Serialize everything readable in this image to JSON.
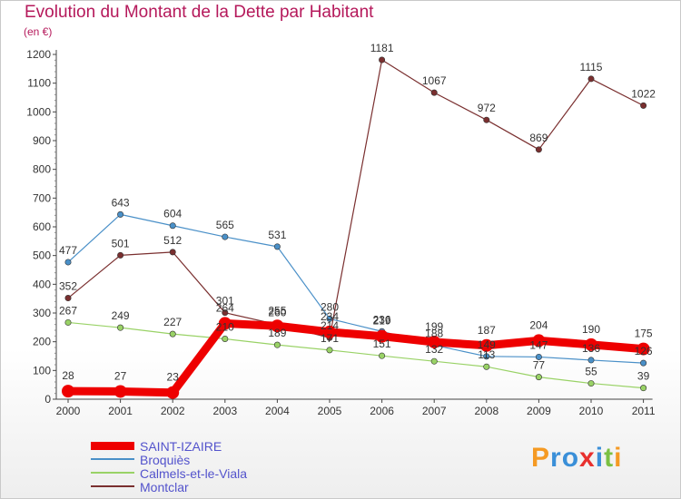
{
  "title": "Evolution du Montant de la Dette par Habitant",
  "unit_label": "(en €)",
  "brand": {
    "text": "Proxiti",
    "colors": [
      "#f59a23",
      "#3a8fd8",
      "#3a8fd8",
      "#e8302e",
      "#3a8fd8",
      "#7bc043",
      "#f59a23"
    ]
  },
  "chart_data": {
    "type": "line",
    "title": "Evolution du Montant de la Dette par Habitant",
    "ylabel": "(en €)",
    "xlabel": "",
    "ylim": [
      0,
      1200
    ],
    "yticks": [
      "0",
      "100",
      "200",
      "300",
      "400",
      "500",
      "600",
      "700",
      "800",
      "900",
      "1000",
      "1100",
      "1200"
    ],
    "categories": [
      "2000",
      "2001",
      "2002",
      "2003",
      "2004",
      "2005",
      "2006",
      "2007",
      "2008",
      "2009",
      "2010",
      "2011"
    ],
    "grid": false,
    "legend_position": "bottom-left",
    "series": [
      {
        "name": "Broquiès",
        "color": "#4a90c8",
        "thick": false,
        "values": [
          477,
          643,
          604,
          565,
          531,
          280,
          236,
          188,
          149,
          147,
          136,
          126
        ],
        "labels": [
          "477",
          "643",
          "604",
          "565",
          "531",
          "280",
          "236",
          "188",
          "149",
          "147",
          "136",
          "126"
        ]
      },
      {
        "name": "Calmels-et-le-Viala",
        "color": "#99d266",
        "thick": false,
        "values": [
          267,
          249,
          227,
          210,
          189,
          171,
          151,
          132,
          113,
          77,
          55,
          39
        ],
        "labels": [
          "267",
          "249",
          "227",
          "210",
          "189",
          "171",
          "151",
          "132",
          "113",
          "77",
          "55",
          "39"
        ]
      },
      {
        "name": "Montclar",
        "color": "#7a2f2f",
        "thick": false,
        "values": [
          352,
          501,
          512,
          301,
          260,
          214,
          1181,
          1067,
          972,
          869,
          1115,
          1022
        ],
        "labels": [
          "352",
          "501",
          "512",
          "301",
          "260",
          "214",
          "1181",
          "1067",
          "972",
          "869",
          "1115",
          "1022"
        ]
      },
      {
        "name": "SAINT-IZAIRE",
        "color": "#ee0000",
        "thick": true,
        "values": [
          28,
          27,
          23,
          264,
          255,
          234,
          219,
          199,
          187,
          204,
          190,
          175
        ],
        "labels": [
          "28",
          "27",
          "23",
          "264",
          "255",
          "234",
          "219",
          "199",
          "187",
          "204",
          "190",
          "175"
        ]
      }
    ]
  },
  "legend": [
    {
      "name": "SAINT-IZAIRE",
      "color": "#ee0000",
      "thick": true
    },
    {
      "name": "Broquiès",
      "color": "#4a90c8",
      "thick": false
    },
    {
      "name": "Calmels-et-le-Viala",
      "color": "#99d266",
      "thick": false
    },
    {
      "name": "Montclar",
      "color": "#7a2f2f",
      "thick": false
    }
  ]
}
